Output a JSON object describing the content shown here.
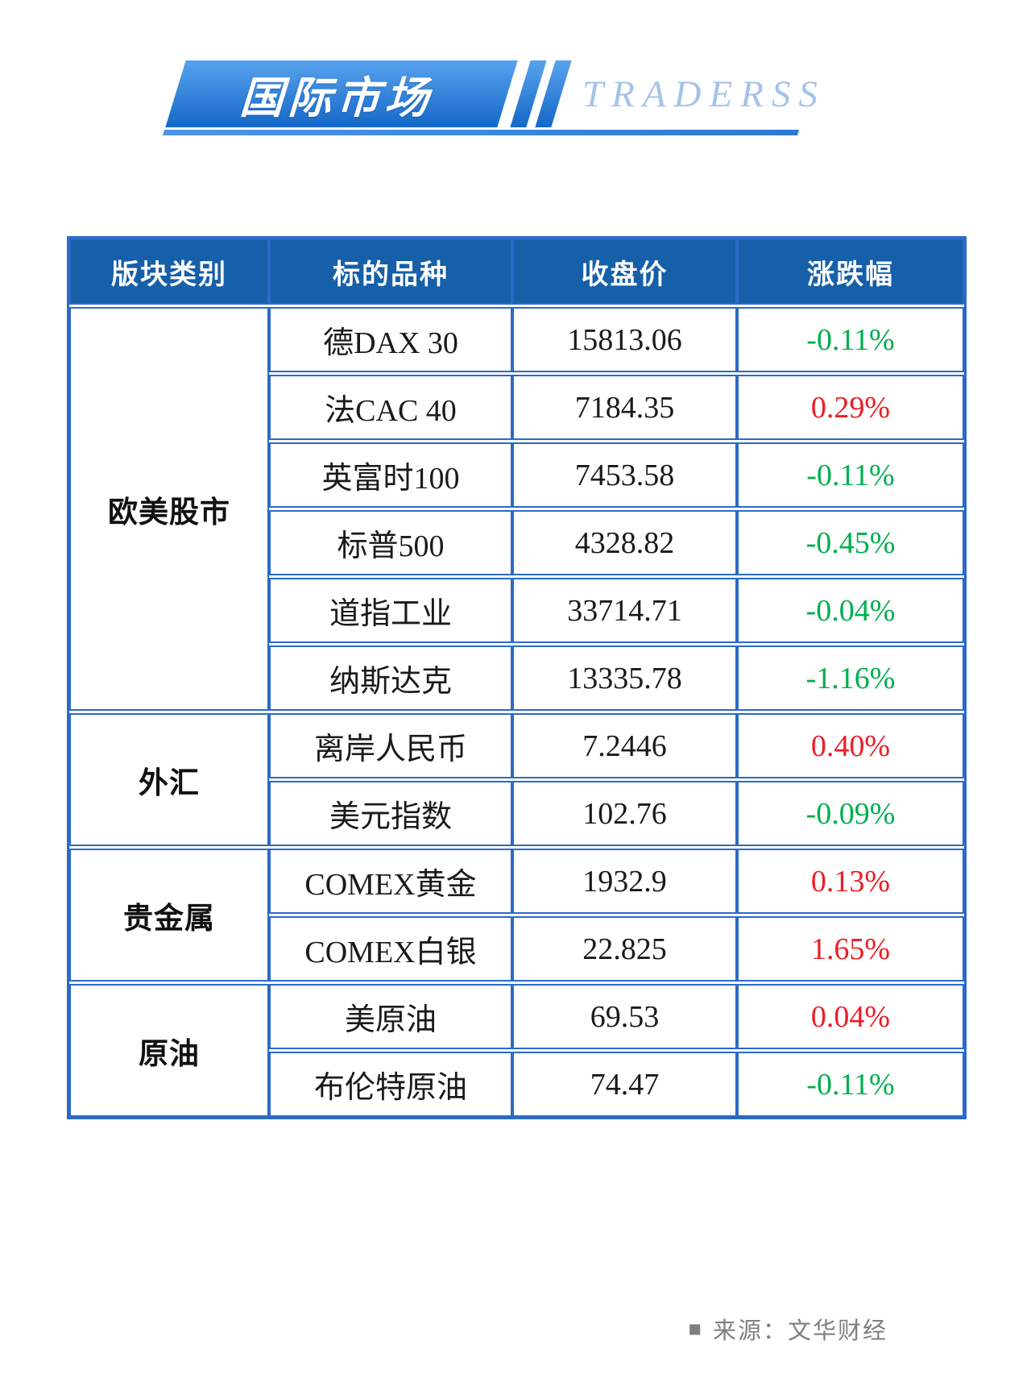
{
  "header": {
    "title": "国际市场",
    "brand": "TRADERSS"
  },
  "chart_data": {
    "type": "table",
    "title": "国际市场",
    "columns": [
      "版块类别",
      "标的品种",
      "收盘价",
      "涨跌幅"
    ],
    "groups": [
      {
        "category": "欧美股市",
        "rows": [
          {
            "name": "德DAX 30",
            "close": "15813.06",
            "change": "-0.11%",
            "direction": "down"
          },
          {
            "name": "法CAC 40",
            "close": "7184.35",
            "change": "0.29%",
            "direction": "up"
          },
          {
            "name": "英富时100",
            "close": "7453.58",
            "change": "-0.11%",
            "direction": "down"
          },
          {
            "name": "标普500",
            "close": "4328.82",
            "change": "-0.45%",
            "direction": "down"
          },
          {
            "name": "道指工业",
            "close": "33714.71",
            "change": "-0.04%",
            "direction": "down"
          },
          {
            "name": "纳斯达克",
            "close": "13335.78",
            "change": "-1.16%",
            "direction": "down"
          }
        ]
      },
      {
        "category": "外汇",
        "rows": [
          {
            "name": "离岸人民币",
            "close": "7.2446",
            "change": "0.40%",
            "direction": "up"
          },
          {
            "name": "美元指数",
            "close": "102.76",
            "change": "-0.09%",
            "direction": "down"
          }
        ]
      },
      {
        "category": "贵金属",
        "rows": [
          {
            "name": "COMEX黄金",
            "close": "1932.9",
            "change": "0.13%",
            "direction": "up"
          },
          {
            "name": "COMEX白银",
            "close": "22.825",
            "change": "1.65%",
            "direction": "up"
          }
        ]
      },
      {
        "category": "原油",
        "rows": [
          {
            "name": "美原油",
            "close": "69.53",
            "change": "0.04%",
            "direction": "up"
          },
          {
            "name": "布伦特原油",
            "close": "74.47",
            "change": "-0.11%",
            "direction": "down"
          }
        ]
      }
    ],
    "legend_note": "red = up, green = down (Chinese market convention)"
  },
  "footer": {
    "bullet": "■",
    "source": "来源：文华财经"
  },
  "colors": {
    "up": "#ee1c24",
    "down": "#00ae4f",
    "header_fill": "#165fa9",
    "border": "#2b6ac7",
    "brand_text": "#a5c3e8",
    "accent_gradient_start": "#58a3ee",
    "accent_gradient_end": "#1568c8",
    "source_gray": "#7f7f7f"
  }
}
